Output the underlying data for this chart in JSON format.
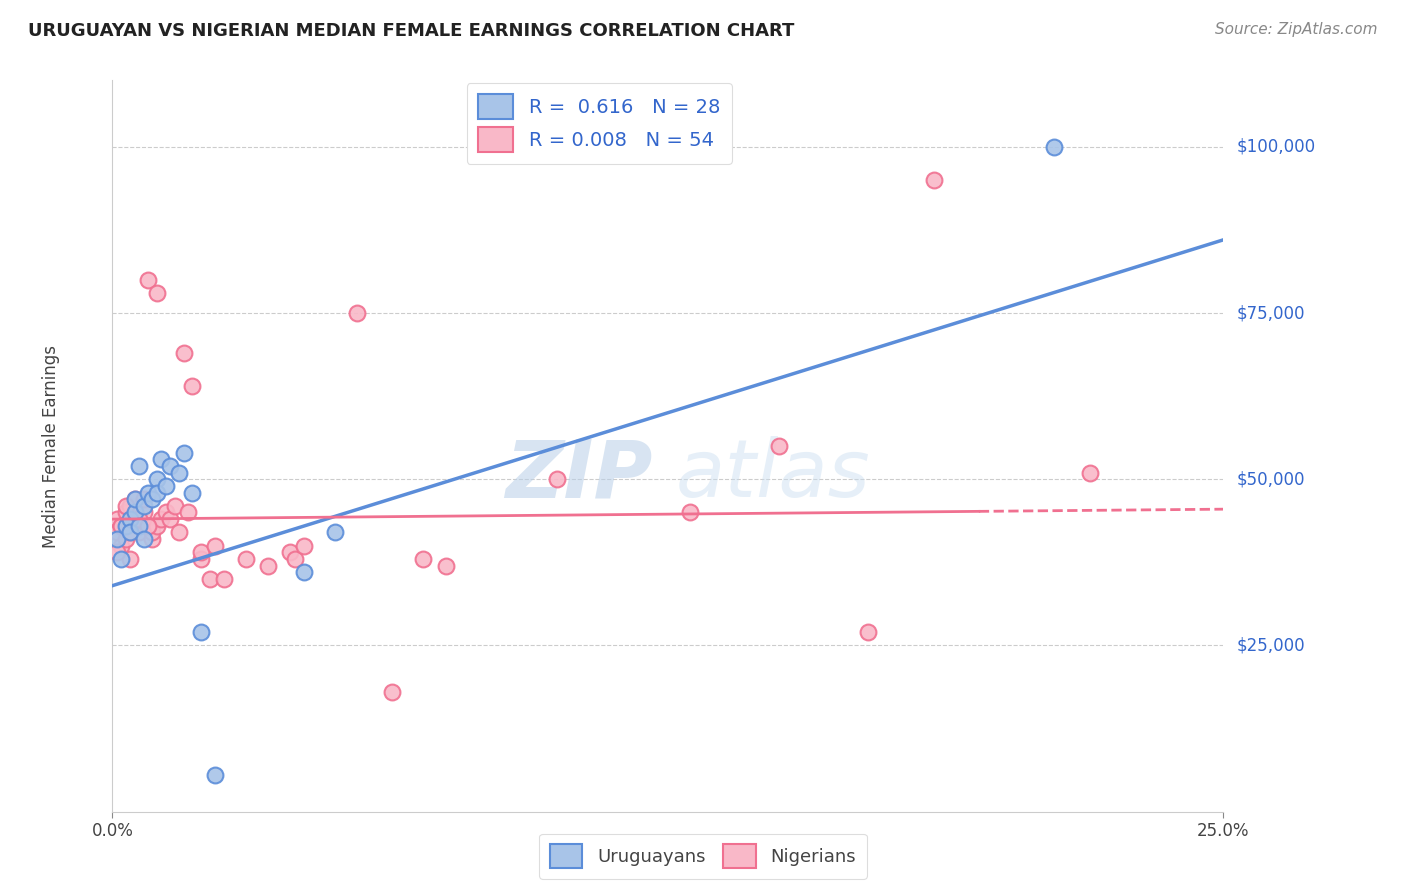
{
  "title": "URUGUAYAN VS NIGERIAN MEDIAN FEMALE EARNINGS CORRELATION CHART",
  "source": "Source: ZipAtlas.com",
  "ylabel": "Median Female Earnings",
  "ytick_labels": [
    "$25,000",
    "$50,000",
    "$75,000",
    "$100,000"
  ],
  "ytick_values": [
    25000,
    50000,
    75000,
    100000
  ],
  "ylim": [
    0,
    110000
  ],
  "xlim": [
    0.0,
    0.25
  ],
  "watermark": "ZIPatlas",
  "uruguayan_color": "#5b8dd9",
  "nigerian_color": "#f07090",
  "uruguayan_fill": "#a8c4e8",
  "nigerian_fill": "#f9b8c8",
  "blue_line_y0": 34000,
  "blue_line_y1": 86000,
  "pink_line_y0": 44000,
  "pink_line_y1": 45500,
  "pink_line_solid_x1": 0.195,
  "uruguayan_x": [
    0.001,
    0.002,
    0.003,
    0.004,
    0.004,
    0.005,
    0.005,
    0.006,
    0.006,
    0.007,
    0.007,
    0.008,
    0.009,
    0.01,
    0.01,
    0.011,
    0.012,
    0.013,
    0.015,
    0.016,
    0.018,
    0.02,
    0.023,
    0.043,
    0.05,
    0.212
  ],
  "uruguayan_y": [
    41000,
    38000,
    43000,
    44000,
    42000,
    45000,
    47000,
    43000,
    52000,
    41000,
    46000,
    48000,
    47000,
    50000,
    48000,
    53000,
    49000,
    52000,
    51000,
    54000,
    48000,
    27000,
    5500,
    36000,
    42000,
    100000
  ],
  "nigerian_x": [
    0.001,
    0.001,
    0.002,
    0.002,
    0.003,
    0.003,
    0.004,
    0.004,
    0.005,
    0.005,
    0.006,
    0.006,
    0.007,
    0.007,
    0.008,
    0.008,
    0.009,
    0.009,
    0.01,
    0.01,
    0.011,
    0.012,
    0.013,
    0.014,
    0.015,
    0.016,
    0.017,
    0.018,
    0.02,
    0.02,
    0.022,
    0.023,
    0.025,
    0.03,
    0.035,
    0.04,
    0.041,
    0.043,
    0.055,
    0.063,
    0.07,
    0.075,
    0.1,
    0.13,
    0.15,
    0.17,
    0.185,
    0.22,
    0.001,
    0.002,
    0.003,
    0.004,
    0.006,
    0.008
  ],
  "nigerian_y": [
    42000,
    44000,
    40000,
    43000,
    41000,
    45000,
    38000,
    46000,
    43000,
    47000,
    42000,
    44000,
    45000,
    47000,
    43000,
    80000,
    41000,
    42000,
    78000,
    43000,
    44000,
    45000,
    44000,
    46000,
    42000,
    69000,
    45000,
    64000,
    38000,
    39000,
    35000,
    40000,
    35000,
    38000,
    37000,
    39000,
    38000,
    40000,
    75000,
    18000,
    38000,
    37000,
    50000,
    45000,
    55000,
    27000,
    95000,
    51000,
    39000,
    43000,
    46000,
    42000,
    44000,
    43000
  ]
}
